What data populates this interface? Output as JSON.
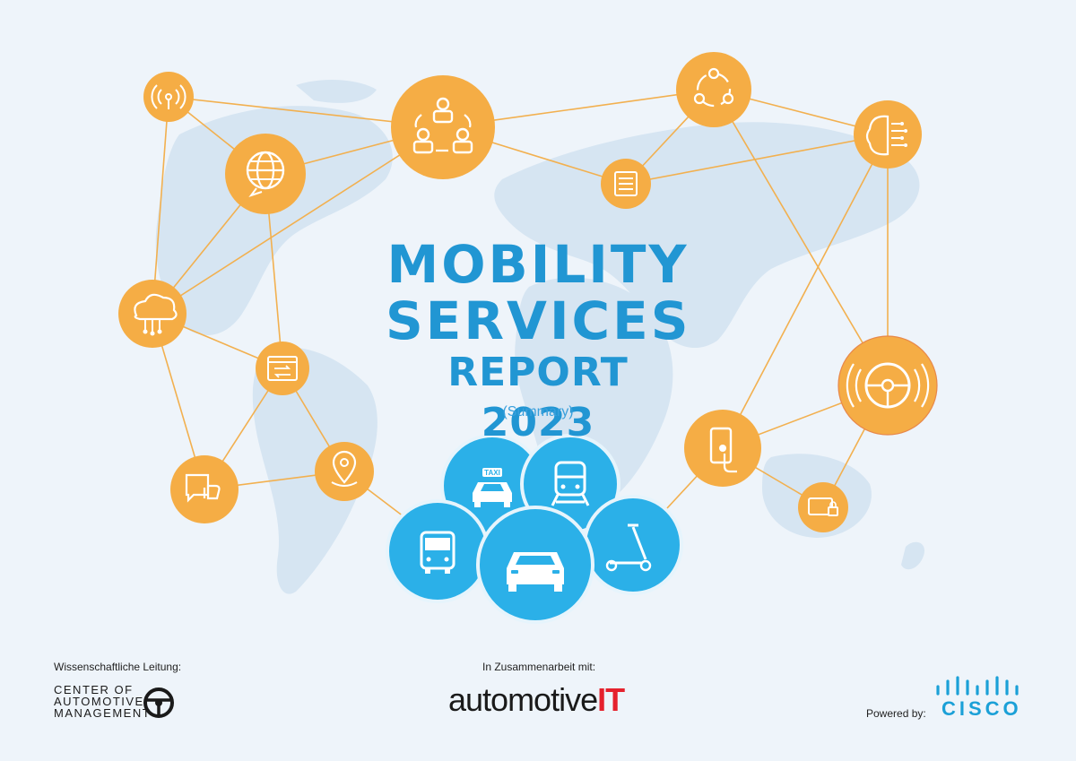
{
  "title": {
    "line1": "MOBILITY",
    "line2": "SERVICES",
    "line3": "REPORT 2023",
    "subtitle": "(Summary)"
  },
  "icons": [
    "antenna-icon",
    "globe-icon",
    "team-cycle-icon",
    "connection-cycle-icon",
    "ai-brain-icon",
    "server-list-icon",
    "cloud-network-icon",
    "browser-window-icon",
    "autonomous-steering-icon",
    "smartphone-touch-icon",
    "like-chat-icon",
    "location-pin-icon",
    "payment-card-lock-icon",
    "taxi-icon",
    "train-icon",
    "bus-icon",
    "car-icon",
    "e-scooter-icon"
  ],
  "vehicles": {
    "taxi_sign": "TAXI"
  },
  "colors": {
    "orange": "#f5ad45",
    "blue": "#2bb0e8",
    "title": "#2196d3",
    "line": "#f2b04f",
    "map": "#d5e4f1"
  },
  "footer": {
    "science_label": "Wissenschaftliche Leitung:",
    "cam_line1": "CENTER OF",
    "cam_line2": "AUTOMOTIVE",
    "cam_line3": "MANAGEMENT",
    "partner_label": "In Zusammenarbeit mit:",
    "partner_name": "automotive",
    "partner_name_it": "IT",
    "powered_label": "Powered by:",
    "sponsor": "CISCO"
  }
}
